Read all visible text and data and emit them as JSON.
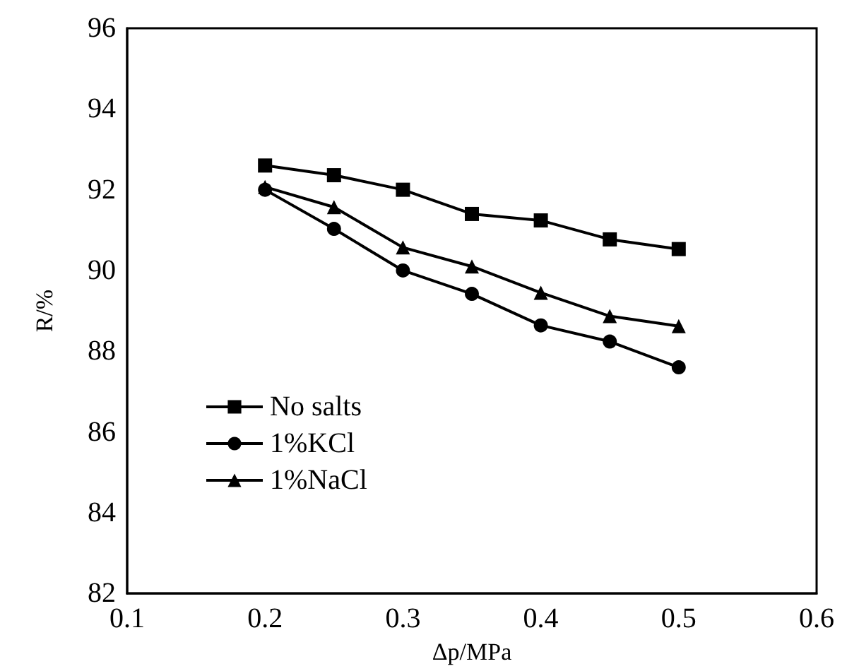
{
  "chart_data": {
    "type": "line",
    "xlabel": "Δp/MPa",
    "ylabel": "R/%",
    "x": [
      0.2,
      0.25,
      0.3,
      0.35,
      0.4,
      0.45,
      0.5
    ],
    "series": [
      {
        "name": "No salts",
        "color": "#000000",
        "marker": "square",
        "values": [
          92.6,
          92.36,
          92.0,
          91.4,
          91.24,
          90.77,
          90.53
        ]
      },
      {
        "name": "1%KCl",
        "color": "#000000",
        "marker": "circle",
        "values": [
          92.0,
          91.03,
          90.0,
          89.42,
          88.64,
          88.24,
          87.6
        ]
      },
      {
        "name": "1%NaCl",
        "color": "#000000",
        "marker": "triangle",
        "values": [
          92.07,
          91.57,
          90.57,
          90.1,
          89.45,
          88.87,
          88.62
        ]
      }
    ],
    "xlim": [
      0.1,
      0.6
    ],
    "xticks": [
      0.1,
      0.2,
      0.3,
      0.4,
      0.5,
      0.6
    ],
    "ylim": [
      82,
      96
    ],
    "yticks": [
      82,
      84,
      86,
      88,
      90,
      92,
      94,
      96
    ],
    "grid": false,
    "legend": "bottom left",
    "line_style": "solid"
  }
}
